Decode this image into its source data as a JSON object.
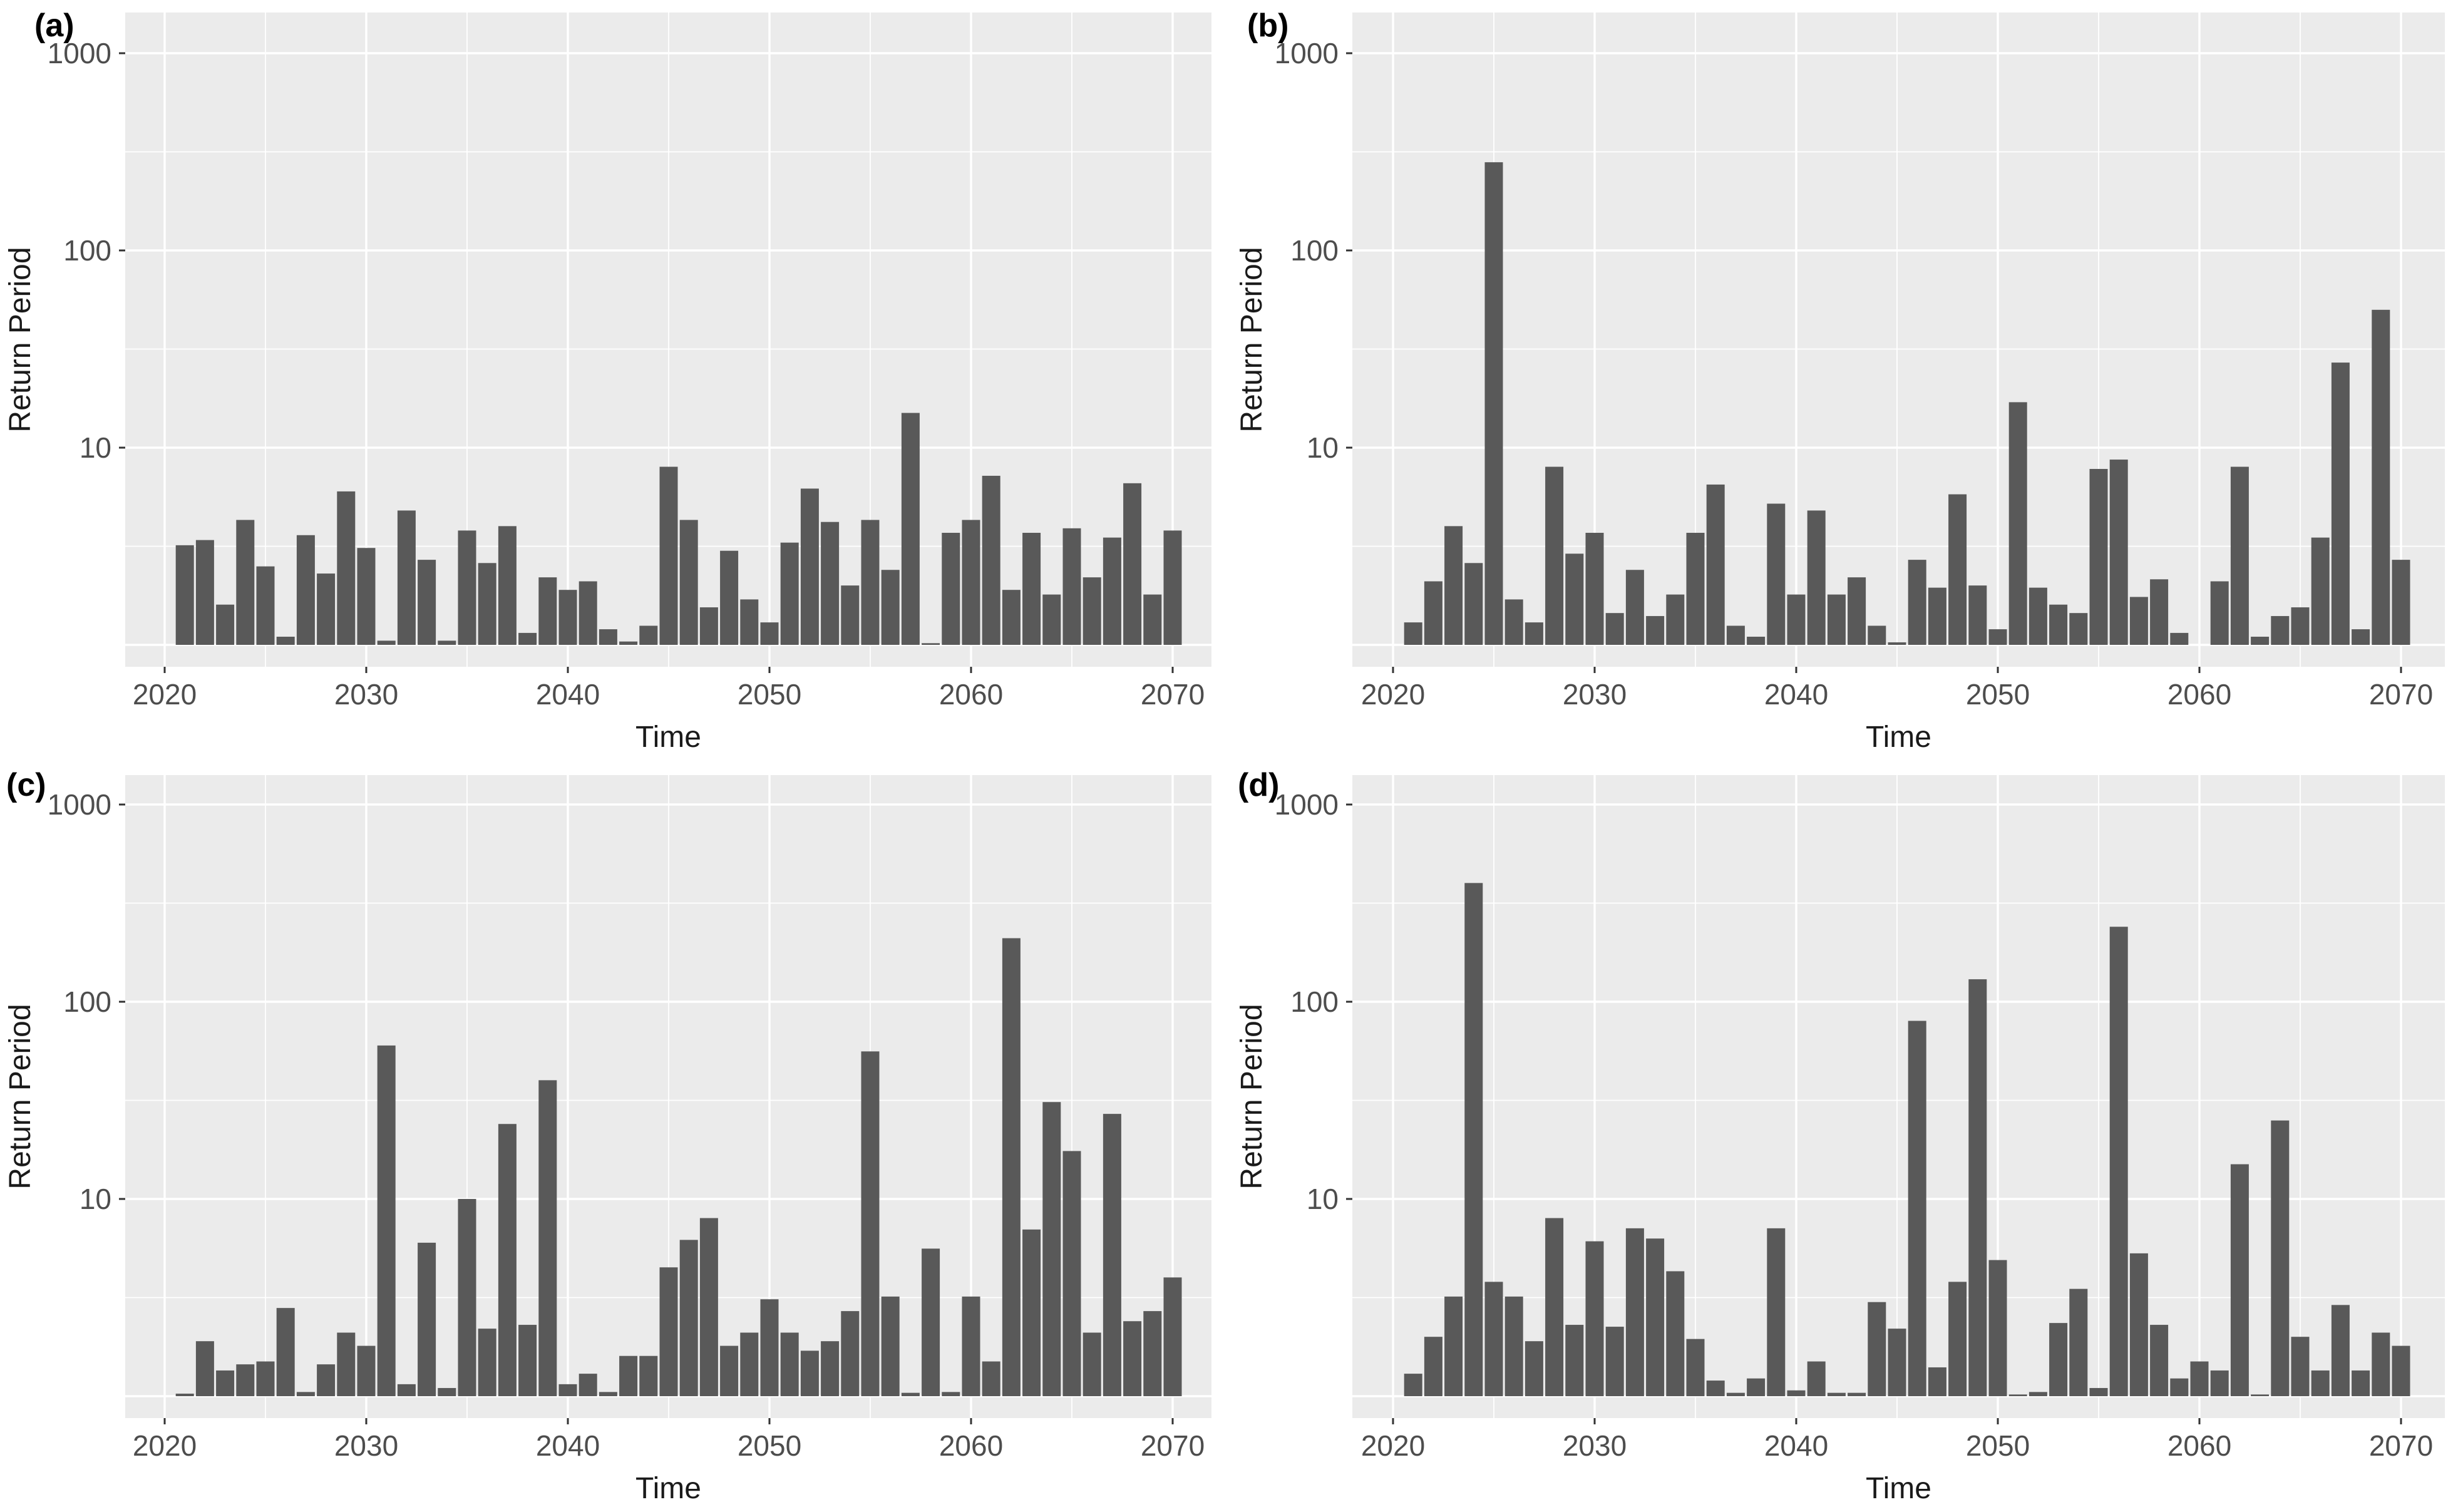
{
  "figure_title": "",
  "style": {
    "bar": "#595959",
    "panel_bg": "#ebebeb",
    "grid": "#ffffff",
    "tick_text": "#4d4d4d",
    "tick_mark": "#333333",
    "axis_title": "#1a1a1a",
    "panel_label": "#000000",
    "figure_bg": "#ffffff"
  },
  "x_axis": {
    "major_breaks": [
      2020,
      2030,
      2040,
      2050,
      2060,
      2070
    ],
    "tick_labels": [
      "2020",
      "2030",
      "2040",
      "2050",
      "2060",
      "2070"
    ],
    "minor_breaks": [
      2025,
      2035,
      2045,
      2055,
      2065
    ]
  },
  "y_axis": {
    "type": "log10",
    "major_breaks": [
      1,
      10,
      100,
      1000
    ],
    "label_breaks": [
      10,
      100,
      1000
    ],
    "tick_labels": [
      "10",
      "100",
      "1000"
    ],
    "minor_breaks": [
      3.1623,
      31.623,
      316.23
    ]
  },
  "chart_data": [
    {
      "id": "a",
      "type": "bar",
      "label": "(a)",
      "xlabel": "Time",
      "ylabel": "Return Period",
      "start_year": 2021,
      "ylim": [
        0.77,
        1600
      ],
      "values": [
        3.2,
        3.4,
        1.6,
        4.3,
        2.5,
        1.1,
        3.6,
        2.3,
        6.0,
        3.1,
        1.05,
        4.8,
        2.7,
        1.05,
        3.8,
        2.6,
        4.0,
        1.15,
        2.2,
        1.9,
        2.1,
        1.2,
        1.04,
        1.25,
        8.0,
        4.3,
        1.55,
        3.0,
        1.7,
        1.3,
        3.3,
        6.2,
        4.2,
        2.0,
        4.3,
        2.4,
        15,
        1.02,
        3.7,
        4.3,
        7.2,
        1.9,
        3.7,
        1.8,
        3.9,
        2.2,
        3.5,
        6.6,
        1.8,
        3.8
      ]
    },
    {
      "id": "b",
      "type": "bar",
      "label": "(b)",
      "xlabel": "Time",
      "ylabel": "Return Period",
      "start_year": 2021,
      "ylim": [
        0.77,
        1600
      ],
      "values": [
        1.3,
        2.1,
        4.0,
        2.6,
        280,
        1.7,
        1.3,
        8.0,
        2.9,
        3.7,
        1.45,
        2.4,
        1.4,
        1.8,
        3.7,
        6.5,
        1.25,
        1.1,
        5.2,
        1.8,
        4.8,
        1.8,
        2.2,
        1.25,
        1.03,
        2.7,
        1.95,
        5.8,
        2.0,
        1.2,
        17,
        1.95,
        1.6,
        1.45,
        7.8,
        8.7,
        1.75,
        2.15,
        1.15,
        1.0,
        2.1,
        8.0,
        1.1,
        1.4,
        1.55,
        3.5,
        27,
        1.2,
        50,
        2.7
      ]
    },
    {
      "id": "c",
      "type": "bar",
      "label": "(c)",
      "xlabel": "Time",
      "ylabel": "Return Period",
      "start_year": 2021,
      "ylim": [
        0.77,
        1400
      ],
      "values": [
        1.03,
        1.9,
        1.35,
        1.45,
        1.5,
        2.8,
        1.05,
        1.45,
        2.1,
        1.8,
        60,
        1.15,
        6.0,
        1.1,
        10,
        2.2,
        24,
        2.3,
        40,
        1.15,
        1.3,
        1.05,
        1.6,
        1.6,
        4.5,
        6.2,
        8.0,
        1.8,
        2.1,
        3.1,
        2.1,
        1.7,
        1.9,
        2.7,
        56,
        3.2,
        1.04,
        5.6,
        1.05,
        3.2,
        1.5,
        210,
        7.0,
        31,
        17.5,
        2.1,
        27,
        2.4,
        2.7,
        4.0
      ]
    },
    {
      "id": "d",
      "type": "bar",
      "label": "(d)",
      "xlabel": "Time",
      "ylabel": "Return Period",
      "start_year": 2021,
      "ylim": [
        0.77,
        1400
      ],
      "values": [
        1.3,
        2.0,
        3.2,
        400,
        3.8,
        3.2,
        1.9,
        8.0,
        2.3,
        6.1,
        2.25,
        7.1,
        6.3,
        4.3,
        1.95,
        1.2,
        1.04,
        1.23,
        7.1,
        1.07,
        1.5,
        1.04,
        1.04,
        3.0,
        2.2,
        80,
        1.4,
        3.8,
        130,
        4.9,
        1.02,
        1.05,
        2.35,
        3.5,
        1.1,
        240,
        5.3,
        2.3,
        1.23,
        1.5,
        1.35,
        15,
        1.02,
        25,
        2.0,
        1.35,
        2.9,
        1.35,
        2.1,
        1.8
      ]
    }
  ]
}
